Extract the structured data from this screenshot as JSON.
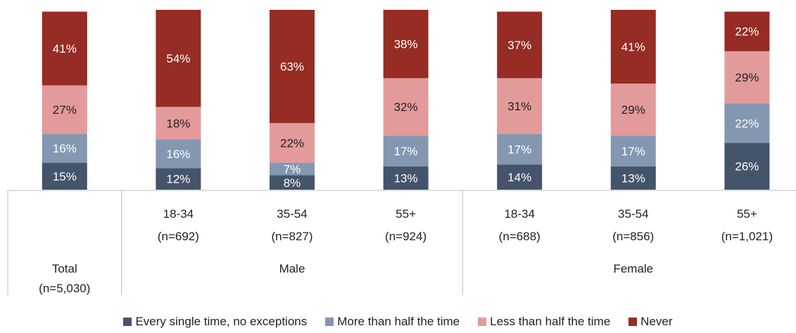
{
  "chart_data": {
    "type": "bar",
    "stacked": true,
    "percent_scale": true,
    "ylim": [
      0,
      100
    ],
    "grid": false,
    "legend_placement": "bottom",
    "categories": [
      {
        "line1": "",
        "line2": "",
        "group": "Total",
        "group_n": "(n=5,030)"
      },
      {
        "line1": "18-34",
        "line2": "(n=692)",
        "group": "Male"
      },
      {
        "line1": "35-54",
        "line2": "(n=827)",
        "group": "Male"
      },
      {
        "line1": "55+",
        "line2": "(n=924)",
        "group": "Male"
      },
      {
        "line1": "18-34",
        "line2": "(n=688)",
        "group": "Female"
      },
      {
        "line1": "35-54",
        "line2": "(n=856)",
        "group": "Female"
      },
      {
        "line1": "55+",
        "line2": "(n=1,021)",
        "group": "Female"
      }
    ],
    "groups": [
      "Total",
      "Male",
      "Female"
    ],
    "series": [
      {
        "name": "Every single time, no exceptions",
        "color": "#44546A",
        "label_color": "#ffffff",
        "values": [
          15,
          12,
          8,
          13,
          14,
          13,
          26
        ]
      },
      {
        "name": "More than half the time",
        "color": "#8497B0",
        "label_color": "#ffffff",
        "values": [
          16,
          16,
          7,
          17,
          17,
          17,
          22
        ]
      },
      {
        "name": "Less than half the time",
        "color": "#E39A9A",
        "label_color": "#222222",
        "values": [
          27,
          18,
          22,
          32,
          31,
          29,
          29
        ]
      },
      {
        "name": "Never",
        "color": "#962C24",
        "label_color": "#ffffff",
        "values": [
          41,
          54,
          63,
          38,
          37,
          41,
          22
        ]
      }
    ]
  }
}
